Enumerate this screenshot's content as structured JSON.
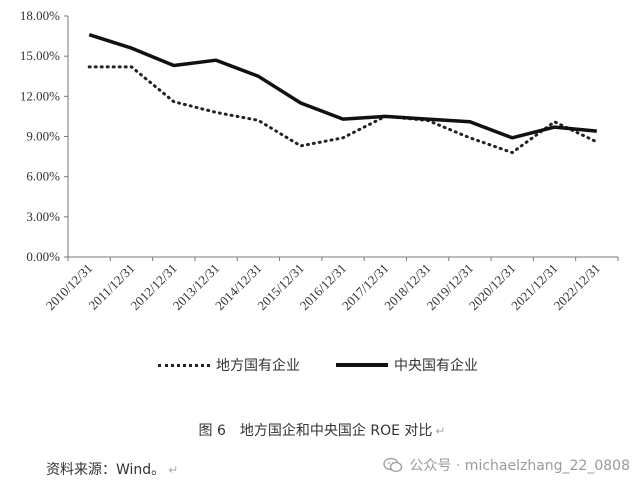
{
  "chart_data": {
    "type": "line",
    "x": [
      "2010/12/31",
      "2011/12/31",
      "2012/12/31",
      "2013/12/31",
      "2014/12/31",
      "2015/12/31",
      "2016/12/31",
      "2017/12/31",
      "2018/12/31",
      "2019/12/31",
      "2020/12/31",
      "2021/12/31",
      "2022/12/31"
    ],
    "y_ticks": [
      "0.00%",
      "3.00%",
      "6.00%",
      "9.00%",
      "12.00%",
      "15.00%",
      "18.00%"
    ],
    "ylim": [
      0,
      18
    ],
    "y_unit": "%",
    "grid": false,
    "legend_position": "bottom",
    "series": [
      {
        "name": "地方国有企业",
        "style": "dotted",
        "color": "#222222",
        "values": [
          14.2,
          14.2,
          11.6,
          10.8,
          10.2,
          8.3,
          8.9,
          10.5,
          10.2,
          8.9,
          7.8,
          10.1,
          8.6
        ]
      },
      {
        "name": "中央国有企业",
        "style": "solid",
        "color": "#111111",
        "values": [
          16.6,
          15.6,
          14.3,
          14.7,
          13.5,
          11.5,
          10.3,
          10.5,
          10.3,
          10.1,
          8.9,
          9.7,
          9.4
        ]
      }
    ]
  },
  "caption": "图 6　地方国企和中央国企 ROE 对比",
  "caption_mark": "↵",
  "source": "资料来源：Wind。",
  "source_mark": "↵",
  "watermark": "公众号 · michaelzhang_22_0808"
}
